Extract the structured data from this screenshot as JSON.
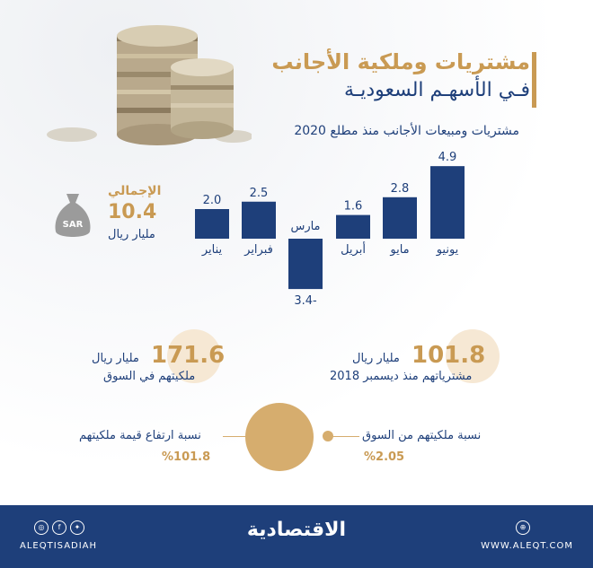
{
  "header": {
    "title_line1": "مشتريات وملكية الأجانب",
    "title_line2": "فـي الأسهـم السعوديـة"
  },
  "chart_data": {
    "type": "bar",
    "title": "مشتريات ومبيعات الأجانب منذ مطلع 2020",
    "categories": [
      "يونيو",
      "مايو",
      "أبريل",
      "مارس",
      "فبراير",
      "يناير"
    ],
    "values": [
      4.9,
      2.8,
      1.6,
      -3.4,
      2.5,
      2.0
    ],
    "value_labels": [
      "4.9",
      "2.8",
      "1.6",
      "3.4-",
      "2.5",
      "2.0"
    ],
    "ylim": [
      -3.4,
      4.9
    ],
    "bar_color": "#1e3f7a",
    "grid": false
  },
  "total": {
    "label": "الإجمالي",
    "value": "10.4",
    "unit": "مليار ريال",
    "bag_text": "SAR"
  },
  "stats": {
    "ownership": {
      "value": "171.6",
      "unit": "مليار ريال",
      "desc": "ملكيتهم في السوق"
    },
    "purchases": {
      "value": "101.8",
      "unit": "مليار ريال",
      "desc": "مشترياتهم منذ ديسمبر 2018"
    }
  },
  "ratios": {
    "market_share_label": "نسبة ملكيتهم من السوق",
    "market_share_value": "%2.05",
    "value_rise_label": "نسبة ارتفاع قيمة ملكيتهم",
    "value_rise_value": "%101.8"
  },
  "footer": {
    "brand": "الاقتصادية",
    "handle": "ALEQTISADIAH",
    "website": "WWW.ALEQT.COM"
  },
  "colors": {
    "navy": "#1e3f7a",
    "gold": "#c99a53",
    "gold_light": "#d6ad6e"
  }
}
